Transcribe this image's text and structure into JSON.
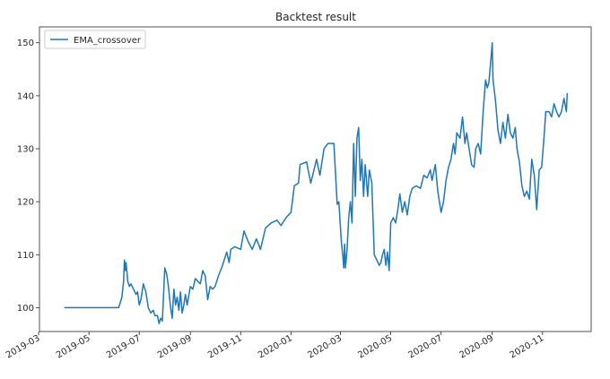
{
  "chart_data": {
    "type": "line",
    "title": "Backtest result",
    "xlabel": "",
    "ylabel": "",
    "grid": false,
    "legend_position": "top-left",
    "x_ticks": [
      "2019-03",
      "2019-05",
      "2019-07",
      "2019-09",
      "2019-11",
      "2020-01",
      "2020-03",
      "2020-05",
      "2020-07",
      "2020-09",
      "2020-11"
    ],
    "y_ticks": [
      100,
      110,
      120,
      130,
      140,
      150
    ],
    "xlim": [
      "2019-03-02",
      "2020-12-30"
    ],
    "ylim": [
      95.5,
      153
    ],
    "colors": {
      "series": "#1f77b4",
      "axes": "#262626"
    },
    "series": [
      {
        "name": "EMA_crossover",
        "points": [
          [
            "2019-04-01",
            100.0
          ],
          [
            "2019-04-15",
            100.0
          ],
          [
            "2019-05-01",
            100.0
          ],
          [
            "2019-05-15",
            100.0
          ],
          [
            "2019-06-01",
            100.0
          ],
          [
            "2019-06-06",
            100.0
          ],
          [
            "2019-06-08",
            101.0
          ],
          [
            "2019-06-10",
            102.0
          ],
          [
            "2019-06-12",
            105.0
          ],
          [
            "2019-06-13",
            109.0
          ],
          [
            "2019-06-14",
            107.0
          ],
          [
            "2019-06-15",
            108.5
          ],
          [
            "2019-06-17",
            105.0
          ],
          [
            "2019-06-19",
            104.0
          ],
          [
            "2019-06-21",
            104.5
          ],
          [
            "2019-06-24",
            103.5
          ],
          [
            "2019-06-27",
            102.5
          ],
          [
            "2019-06-29",
            103.0
          ],
          [
            "2019-07-01",
            100.5
          ],
          [
            "2019-07-03",
            101.5
          ],
          [
            "2019-07-06",
            104.5
          ],
          [
            "2019-07-09",
            103.0
          ],
          [
            "2019-07-12",
            100.0
          ],
          [
            "2019-07-15",
            99.0
          ],
          [
            "2019-07-18",
            99.5
          ],
          [
            "2019-07-20",
            98.5
          ],
          [
            "2019-07-23",
            98.5
          ],
          [
            "2019-07-25",
            97.0
          ],
          [
            "2019-07-27",
            98.0
          ],
          [
            "2019-07-29",
            97.5
          ],
          [
            "2019-08-01",
            107.5
          ],
          [
            "2019-08-03",
            106.5
          ],
          [
            "2019-08-05",
            104.5
          ],
          [
            "2019-08-08",
            100.0
          ],
          [
            "2019-08-10",
            98.0
          ],
          [
            "2019-08-12",
            103.5
          ],
          [
            "2019-08-14",
            100.5
          ],
          [
            "2019-08-16",
            102.0
          ],
          [
            "2019-08-18",
            99.5
          ],
          [
            "2019-08-20",
            103.0
          ],
          [
            "2019-08-22",
            99.0
          ],
          [
            "2019-08-24",
            100.5
          ],
          [
            "2019-08-26",
            102.5
          ],
          [
            "2019-08-28",
            100.5
          ],
          [
            "2019-09-01",
            104.0
          ],
          [
            "2019-09-04",
            103.5
          ],
          [
            "2019-09-07",
            105.5
          ],
          [
            "2019-09-10",
            105.0
          ],
          [
            "2019-09-13",
            104.5
          ],
          [
            "2019-09-16",
            107.0
          ],
          [
            "2019-09-19",
            106.0
          ],
          [
            "2019-09-22",
            101.5
          ],
          [
            "2019-09-25",
            104.0
          ],
          [
            "2019-09-28",
            103.5
          ],
          [
            "2019-10-01",
            104.0
          ],
          [
            "2019-10-05",
            106.0
          ],
          [
            "2019-10-10",
            108.0
          ],
          [
            "2019-10-15",
            110.5
          ],
          [
            "2019-10-18",
            108.5
          ],
          [
            "2019-10-20",
            111.0
          ],
          [
            "2019-10-25",
            111.5
          ],
          [
            "2019-11-01",
            111.0
          ],
          [
            "2019-11-05",
            114.5
          ],
          [
            "2019-11-10",
            112.5
          ],
          [
            "2019-11-15",
            111.0
          ],
          [
            "2019-11-20",
            113.0
          ],
          [
            "2019-11-25",
            111.0
          ],
          [
            "2019-12-01",
            115.0
          ],
          [
            "2019-12-08",
            116.0
          ],
          [
            "2019-12-15",
            116.5
          ],
          [
            "2019-12-20",
            115.5
          ],
          [
            "2019-12-26",
            117.0
          ],
          [
            "2020-01-01",
            118.0
          ],
          [
            "2020-01-05",
            123.0
          ],
          [
            "2020-01-10",
            123.5
          ],
          [
            "2020-01-12",
            127.0
          ],
          [
            "2020-01-20",
            127.5
          ],
          [
            "2020-01-25",
            123.5
          ],
          [
            "2020-02-01",
            128.0
          ],
          [
            "2020-02-05",
            125.0
          ],
          [
            "2020-02-10",
            130.0
          ],
          [
            "2020-02-15",
            131.0
          ],
          [
            "2020-02-22",
            131.0
          ],
          [
            "2020-02-26",
            119.5
          ],
          [
            "2020-02-28",
            120.0
          ],
          [
            "2020-03-02",
            112.5
          ],
          [
            "2020-03-04",
            109.5
          ],
          [
            "2020-03-05",
            107.5
          ],
          [
            "2020-03-06",
            112.0
          ],
          [
            "2020-03-07",
            107.5
          ],
          [
            "2020-03-09",
            111.0
          ],
          [
            "2020-03-11",
            117.0
          ],
          [
            "2020-03-13",
            120.0
          ],
          [
            "2020-03-15",
            116.0
          ],
          [
            "2020-03-17",
            131.0
          ],
          [
            "2020-03-19",
            121.0
          ],
          [
            "2020-03-21",
            132.0
          ],
          [
            "2020-03-23",
            134.0
          ],
          [
            "2020-03-25",
            124.0
          ],
          [
            "2020-03-27",
            128.0
          ],
          [
            "2020-03-29",
            121.0
          ],
          [
            "2020-03-31",
            127.0
          ],
          [
            "2020-04-03",
            121.0
          ],
          [
            "2020-04-05",
            126.0
          ],
          [
            "2020-04-08",
            123.5
          ],
          [
            "2020-04-11",
            110.0
          ],
          [
            "2020-04-14",
            109.0
          ],
          [
            "2020-04-17",
            108.0
          ],
          [
            "2020-04-19",
            108.5
          ],
          [
            "2020-04-21",
            110.0
          ],
          [
            "2020-04-23",
            111.0
          ],
          [
            "2020-04-25",
            108.0
          ],
          [
            "2020-04-27",
            110.5
          ],
          [
            "2020-04-29",
            107.0
          ],
          [
            "2020-05-01",
            116.0
          ],
          [
            "2020-05-04",
            117.0
          ],
          [
            "2020-05-07",
            116.0
          ],
          [
            "2020-05-10",
            119.0
          ],
          [
            "2020-05-12",
            121.5
          ],
          [
            "2020-05-15",
            118.0
          ],
          [
            "2020-05-18",
            120.0
          ],
          [
            "2020-05-21",
            117.5
          ],
          [
            "2020-05-24",
            121.0
          ],
          [
            "2020-05-27",
            122.5
          ],
          [
            "2020-06-01",
            123.0
          ],
          [
            "2020-06-06",
            122.5
          ],
          [
            "2020-06-10",
            125.0
          ],
          [
            "2020-06-14",
            124.5
          ],
          [
            "2020-06-18",
            126.0
          ],
          [
            "2020-06-20",
            124.0
          ],
          [
            "2020-06-24",
            127.0
          ],
          [
            "2020-06-27",
            122.0
          ],
          [
            "2020-07-01",
            118.0
          ],
          [
            "2020-07-04",
            120.0
          ],
          [
            "2020-07-07",
            124.0
          ],
          [
            "2020-07-10",
            126.5
          ],
          [
            "2020-07-13",
            128.0
          ],
          [
            "2020-07-16",
            131.0
          ],
          [
            "2020-07-18",
            129.0
          ],
          [
            "2020-07-20",
            133.0
          ],
          [
            "2020-07-24",
            132.0
          ],
          [
            "2020-07-27",
            136.0
          ],
          [
            "2020-07-30",
            131.0
          ],
          [
            "2020-08-01",
            133.0
          ],
          [
            "2020-08-04",
            130.0
          ],
          [
            "2020-08-07",
            127.0
          ],
          [
            "2020-08-10",
            126.5
          ],
          [
            "2020-08-12",
            130.0
          ],
          [
            "2020-08-15",
            131.0
          ],
          [
            "2020-08-18",
            129.0
          ],
          [
            "2020-08-21",
            137.0
          ],
          [
            "2020-08-24",
            143.0
          ],
          [
            "2020-08-26",
            141.5
          ],
          [
            "2020-08-28",
            142.5
          ],
          [
            "2020-08-31",
            148.0
          ],
          [
            "2020-09-01",
            150.0
          ],
          [
            "2020-09-02",
            143.0
          ],
          [
            "2020-09-05",
            139.0
          ],
          [
            "2020-09-08",
            133.5
          ],
          [
            "2020-09-11",
            131.0
          ],
          [
            "2020-09-14",
            135.0
          ],
          [
            "2020-09-17",
            132.0
          ],
          [
            "2020-09-20",
            136.5
          ],
          [
            "2020-09-23",
            133.0
          ],
          [
            "2020-09-26",
            132.0
          ],
          [
            "2020-09-29",
            134.0
          ],
          [
            "2020-10-01",
            130.0
          ],
          [
            "2020-10-04",
            127.5
          ],
          [
            "2020-10-07",
            123.0
          ],
          [
            "2020-10-10",
            121.0
          ],
          [
            "2020-10-13",
            122.0
          ],
          [
            "2020-10-16",
            120.5
          ],
          [
            "2020-10-19",
            128.0
          ],
          [
            "2020-10-22",
            125.0
          ],
          [
            "2020-10-25",
            118.5
          ],
          [
            "2020-10-28",
            126.0
          ],
          [
            "2020-10-31",
            126.5
          ],
          [
            "2020-11-03",
            132.5
          ],
          [
            "2020-11-05",
            137.0
          ],
          [
            "2020-11-09",
            137.0
          ],
          [
            "2020-11-12",
            136.0
          ],
          [
            "2020-11-15",
            138.5
          ],
          [
            "2020-11-18",
            137.0
          ],
          [
            "2020-11-21",
            136.0
          ],
          [
            "2020-11-24",
            137.0
          ],
          [
            "2020-11-27",
            139.5
          ],
          [
            "2020-11-30",
            137.0
          ],
          [
            "2020-12-01",
            140.5
          ]
        ]
      }
    ]
  }
}
